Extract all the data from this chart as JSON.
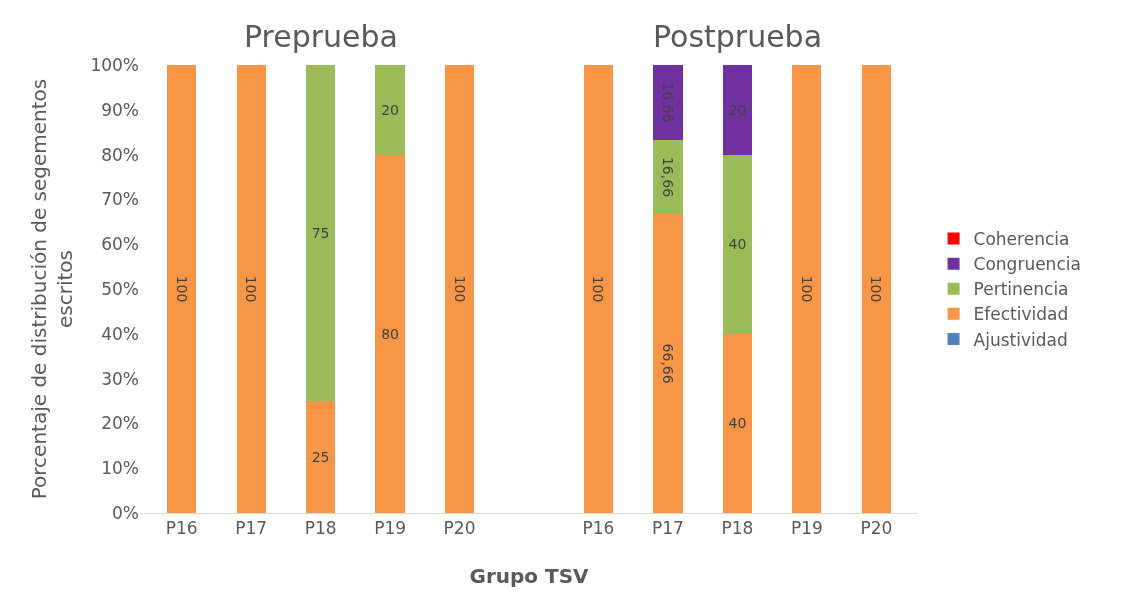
{
  "chart_data": {
    "type": "bar",
    "stacked": true,
    "xlabel": "Grupo TSV",
    "ylabel": "Porcentaje de distribución de segementos escritos",
    "categories": [
      "P16",
      "P17",
      "P18",
      "P19",
      "P20",
      null,
      "P16",
      "P17",
      "P18",
      "P19",
      "P20"
    ],
    "annotations": [
      "Preprueba",
      "Postprueba"
    ],
    "ylim": [
      0,
      100
    ],
    "yticks": [
      {
        "value": 0,
        "label": "0%"
      },
      {
        "value": 10,
        "label": "10%"
      },
      {
        "value": 20,
        "label": "20%"
      },
      {
        "value": 30,
        "label": "30%"
      },
      {
        "value": 40,
        "label": "40%"
      },
      {
        "value": 50,
        "label": "50%"
      },
      {
        "value": 60,
        "label": "60%"
      },
      {
        "value": 70,
        "label": "70%"
      },
      {
        "value": 80,
        "label": "80%"
      },
      {
        "value": 90,
        "label": "90%"
      },
      {
        "value": 100,
        "label": "100%"
      }
    ],
    "grid": false,
    "legend": "right",
    "series": [
      {
        "name": "Ajustividad",
        "color": "#4f81bd",
        "values": [
          null,
          null,
          null,
          null,
          null,
          null,
          null,
          null,
          null,
          null,
          null
        ]
      },
      {
        "name": "Efectividad",
        "color": "#f79646",
        "values": [
          100,
          100,
          25,
          80,
          100,
          null,
          100,
          66.66,
          40,
          100,
          100
        ],
        "value_labels": [
          "100",
          "100",
          "25",
          "80",
          "100",
          null,
          "100",
          "66,66",
          "40",
          "100",
          "100"
        ]
      },
      {
        "name": "Pertinencia",
        "color": "#9bbb59",
        "values": [
          null,
          null,
          75,
          20,
          null,
          null,
          null,
          16.66,
          40,
          null,
          null
        ],
        "value_labels": [
          null,
          null,
          "75",
          "20",
          null,
          null,
          null,
          "16,66",
          "40",
          null,
          null
        ]
      },
      {
        "name": "Congruencia",
        "color": "#7030a0",
        "values": [
          null,
          null,
          null,
          null,
          null,
          null,
          null,
          16.66,
          20,
          null,
          null
        ],
        "value_labels": [
          null,
          null,
          null,
          null,
          null,
          null,
          null,
          "16,66",
          "20",
          null,
          null
        ]
      },
      {
        "name": "Coherencia",
        "color": "#ff0000",
        "values": [
          null,
          null,
          null,
          null,
          null,
          null,
          null,
          null,
          null,
          null,
          null
        ]
      }
    ]
  }
}
